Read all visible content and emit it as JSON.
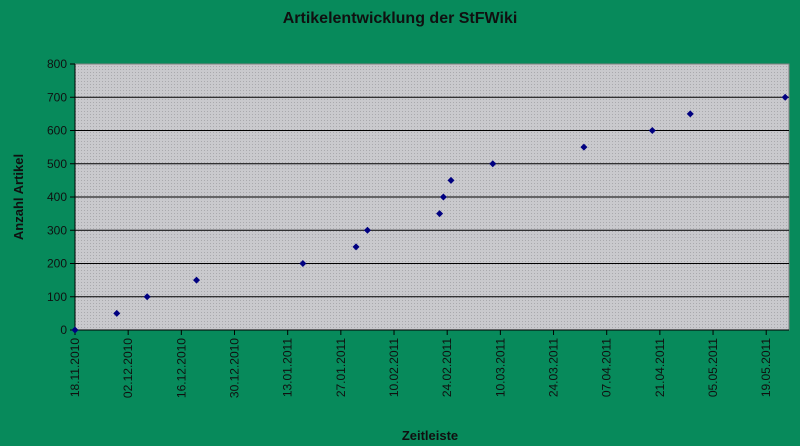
{
  "chart_data": {
    "type": "scatter",
    "title": "Artikelentwicklung der StFWiki",
    "xlabel": "Zeitleiste",
    "ylabel": "Anzahl Artikel",
    "x_type": "date",
    "xlim": [
      "2010-11-18",
      "2011-05-25"
    ],
    "ylim": [
      0,
      800
    ],
    "x_ticks": [
      "18.11.2010",
      "02.12.2010",
      "16.12.2010",
      "30.12.2010",
      "13.01.2011",
      "27.01.2011",
      "10.02.2011",
      "24.02.2011",
      "10.03.2011",
      "24.03.2011",
      "07.04.2011",
      "21.04.2011",
      "05.05.2011",
      "19.05.2011"
    ],
    "y_ticks": [
      0,
      100,
      200,
      300,
      400,
      500,
      600,
      700,
      800
    ],
    "grid": true,
    "series": [
      {
        "color": "#000080",
        "points": [
          {
            "x": "2010-11-18",
            "y": 0
          },
          {
            "x": "2010-11-29",
            "y": 50
          },
          {
            "x": "2010-12-07",
            "y": 100
          },
          {
            "x": "2010-12-20",
            "y": 150
          },
          {
            "x": "2011-01-17",
            "y": 200
          },
          {
            "x": "2011-01-31",
            "y": 250
          },
          {
            "x": "2011-02-03",
            "y": 300
          },
          {
            "x": "2011-02-22",
            "y": 350
          },
          {
            "x": "2011-02-23",
            "y": 400
          },
          {
            "x": "2011-02-25",
            "y": 450
          },
          {
            "x": "2011-03-08",
            "y": 500
          },
          {
            "x": "2011-04-01",
            "y": 550
          },
          {
            "x": "2011-04-19",
            "y": 600
          },
          {
            "x": "2011-04-29",
            "y": 650
          },
          {
            "x": "2011-05-24",
            "y": 700
          }
        ]
      }
    ]
  },
  "colors": {
    "background": "#078a5b",
    "plot_area": "#c8c8cc",
    "marker": "#000080",
    "gridline": "#000000"
  }
}
